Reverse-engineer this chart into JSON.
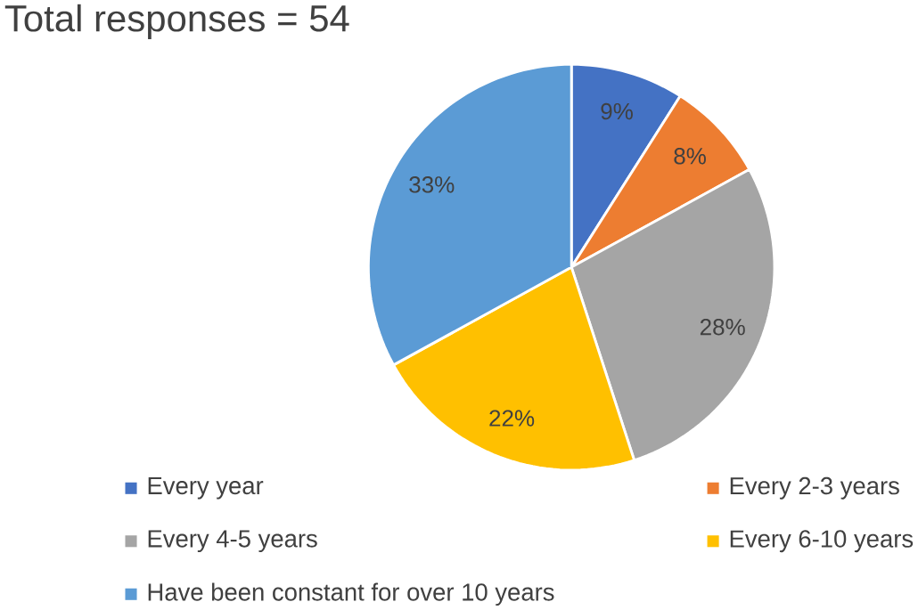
{
  "chart_data": {
    "type": "pie",
    "title": "Total responses = 54",
    "categories": [
      "Every year",
      "Every 2-3 years",
      "Every 4-5 years",
      "Every 6-10 years",
      "Have been constant for over 10 years"
    ],
    "values": [
      9,
      8,
      28,
      22,
      33
    ],
    "value_labels": [
      "9%",
      "8%",
      "28%",
      "22%",
      "33%"
    ],
    "colors": [
      "#4472c4",
      "#ed7d31",
      "#a5a5a5",
      "#ffc000",
      "#5b9bd5"
    ],
    "legend": "bottom"
  }
}
